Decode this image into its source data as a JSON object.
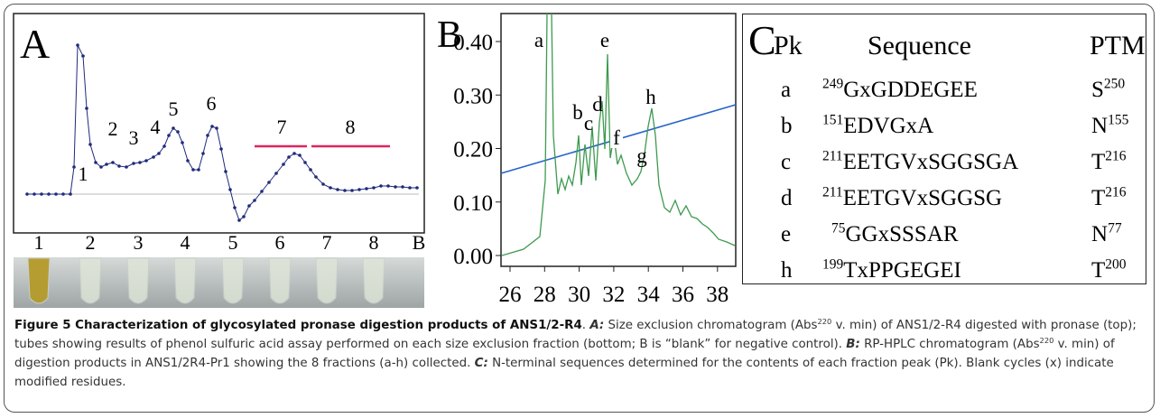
{
  "panel_a": {
    "label": "A",
    "peak_labels": [
      "1",
      "2",
      "3",
      "4",
      "5",
      "6",
      "7",
      "8"
    ],
    "tube_labels": [
      "1",
      "2",
      "3",
      "4",
      "5",
      "6",
      "7",
      "8",
      "B"
    ]
  },
  "panel_b": {
    "label": "B",
    "yticks": [
      "0.00",
      "0.10",
      "0.20",
      "0.30",
      "0.40"
    ],
    "xticks": [
      "26",
      "28",
      "30",
      "32",
      "34",
      "36",
      "38"
    ],
    "peak_labels": [
      "a",
      "b",
      "c",
      "d",
      "e",
      "f",
      "g",
      "h"
    ]
  },
  "panel_c": {
    "label": "C",
    "header": [
      "Pk",
      "Sequence",
      "PTM"
    ],
    "rows": [
      {
        "pk": "a",
        "seq_num": "249",
        "seq": "GxGDDEGEE",
        "ptm": "S",
        "ptm_num": "250"
      },
      {
        "pk": "b",
        "seq_num": "151",
        "seq": "EDVGxA",
        "ptm": "N",
        "ptm_num": "155"
      },
      {
        "pk": "c",
        "seq_num": "211",
        "seq": "EETGVxSGGSGA",
        "ptm": "T",
        "ptm_num": "216"
      },
      {
        "pk": "d",
        "seq_num": "211",
        "seq": "EETGVxSGGSG",
        "ptm": "T",
        "ptm_num": "216"
      },
      {
        "pk": "e",
        "seq_num": "75",
        "seq": "GGxSSSAR",
        "ptm": "N",
        "ptm_num": "77"
      },
      {
        "pk": "h",
        "seq_num": "199",
        "seq": "TxPPGEGEI",
        "ptm": "T",
        "ptm_num": "200"
      }
    ]
  },
  "caption": [
    {
      "text": "Figure 5 Characterization of glycosylated pronase digestion products of ANS1/2-R4",
      "style": "bold"
    },
    {
      "text": ". ",
      "style": "plain"
    },
    {
      "text": "A:",
      "style": "bold-italic"
    },
    {
      "text": " Size exclusion chromatogram (Abs",
      "style": "plain"
    },
    {
      "text": "220",
      "style": "sup"
    },
    {
      "text": " v. min) of ANS1/2-R4 digested with pronase (top); tubes showing results of phenol sulfuric acid assay performed on each size exclusion fraction (bottom; B is “blank” for negative control). ",
      "style": "plain"
    },
    {
      "text": "B:",
      "style": "bold-italic"
    },
    {
      "text": " RP-HPLC chromatogram (Abs",
      "style": "plain"
    },
    {
      "text": "220",
      "style": "sup"
    },
    {
      "text": " v. min) of digestion products in ANS1/2R4-Pr1 showing the 8 fractions (a-h) collected. ",
      "style": "plain"
    },
    {
      "text": "C:",
      "style": "bold-italic"
    },
    {
      "text": " N-terminal sequences determined for the contents of each fraction peak (Pk). Blank cycles (x) indicate modified residues.",
      "style": "plain"
    }
  ]
}
